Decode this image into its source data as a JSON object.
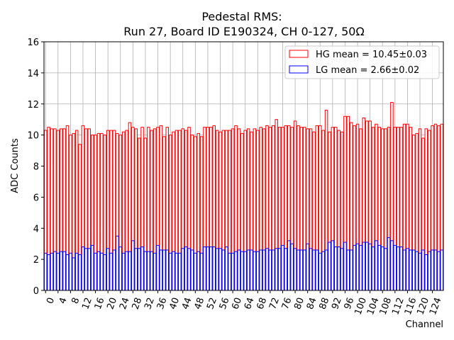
{
  "chart_data": {
    "type": "bar",
    "title": "Pedestal RMS:",
    "subtitle": "Run 27, Board ID E190324, CH 0-127, 50Ω",
    "xlabel": "Channel",
    "ylabel": "ADC Counts",
    "xlim": [
      -0.5,
      127.5
    ],
    "ylim": [
      0,
      16
    ],
    "xticks": [
      0,
      4,
      8,
      12,
      16,
      20,
      24,
      28,
      32,
      36,
      40,
      44,
      48,
      52,
      56,
      60,
      64,
      68,
      72,
      76,
      80,
      84,
      88,
      92,
      96,
      100,
      104,
      108,
      112,
      116,
      120,
      124
    ],
    "yticks": [
      0,
      2,
      4,
      6,
      8,
      10,
      12,
      14,
      16
    ],
    "grid": true,
    "legend_position": "top-right",
    "bar_style": "outline",
    "series": [
      {
        "name": "HG mean = 10.45±0.03",
        "color": "#ff0000",
        "values": [
          10.3,
          10.5,
          10.4,
          10.4,
          10.3,
          10.4,
          10.4,
          10.6,
          10.0,
          10.1,
          10.3,
          9.4,
          10.6,
          10.4,
          10.4,
          10.0,
          10.0,
          10.1,
          10.1,
          10.0,
          10.3,
          10.3,
          10.3,
          10.1,
          10.0,
          10.2,
          10.3,
          10.8,
          10.5,
          10.4,
          9.8,
          10.5,
          9.8,
          10.5,
          10.3,
          10.4,
          10.5,
          10.6,
          9.9,
          10.5,
          10.0,
          10.2,
          10.3,
          10.3,
          10.4,
          10.3,
          10.5,
          10.0,
          9.9,
          10.1,
          9.9,
          10.5,
          10.5,
          10.5,
          10.6,
          10.3,
          10.2,
          10.3,
          10.3,
          10.3,
          10.4,
          10.6,
          10.4,
          10.1,
          10.3,
          10.4,
          10.2,
          10.4,
          10.3,
          10.5,
          10.4,
          10.6,
          10.5,
          10.6,
          11.0,
          10.5,
          10.5,
          10.6,
          10.6,
          10.5,
          10.9,
          10.6,
          10.5,
          10.5,
          10.4,
          10.4,
          10.2,
          10.6,
          10.6,
          10.3,
          11.6,
          10.2,
          10.5,
          10.5,
          10.3,
          10.2,
          11.2,
          11.2,
          10.8,
          10.6,
          10.7,
          10.4,
          11.1,
          10.9,
          10.9,
          10.5,
          10.7,
          10.5,
          10.4,
          10.4,
          10.5,
          12.1,
          10.5,
          10.5,
          10.5,
          10.7,
          10.7,
          10.5,
          10.0,
          10.1,
          10.4,
          9.8,
          10.4,
          10.3,
          10.6,
          10.7,
          10.6,
          10.7
        ]
      },
      {
        "name": "LG mean = 2.66±0.02",
        "color": "#0000ff",
        "values": [
          2.4,
          2.3,
          2.4,
          2.5,
          2.4,
          2.5,
          2.5,
          2.3,
          2.4,
          2.1,
          2.4,
          2.3,
          2.8,
          2.7,
          2.7,
          2.9,
          2.4,
          2.5,
          2.4,
          2.3,
          2.7,
          2.4,
          2.6,
          3.5,
          2.8,
          2.4,
          2.5,
          2.5,
          3.2,
          2.7,
          2.7,
          2.8,
          2.5,
          2.5,
          2.5,
          2.4,
          2.9,
          2.6,
          2.6,
          2.6,
          2.4,
          2.5,
          2.4,
          2.4,
          2.7,
          2.8,
          2.7,
          2.6,
          2.4,
          2.5,
          2.4,
          2.8,
          2.8,
          2.8,
          2.8,
          2.7,
          2.7,
          2.6,
          2.8,
          2.4,
          2.4,
          2.5,
          2.6,
          2.5,
          2.5,
          2.6,
          2.6,
          2.5,
          2.5,
          2.6,
          2.6,
          2.7,
          2.6,
          2.6,
          2.7,
          2.7,
          2.9,
          2.7,
          3.2,
          3.0,
          2.7,
          2.6,
          2.6,
          2.6,
          3.0,
          2.7,
          2.6,
          2.6,
          2.4,
          2.5,
          2.6,
          3.1,
          3.2,
          2.8,
          2.8,
          2.7,
          3.1,
          2.6,
          2.6,
          2.9,
          3.0,
          2.9,
          3.1,
          3.1,
          3.0,
          2.8,
          3.2,
          2.9,
          2.8,
          2.7,
          3.4,
          3.2,
          2.9,
          2.8,
          2.8,
          2.6,
          2.7,
          2.6,
          2.6,
          2.5,
          2.4,
          2.6,
          2.3,
          2.5,
          2.6,
          2.6,
          2.5,
          2.6
        ]
      }
    ]
  }
}
